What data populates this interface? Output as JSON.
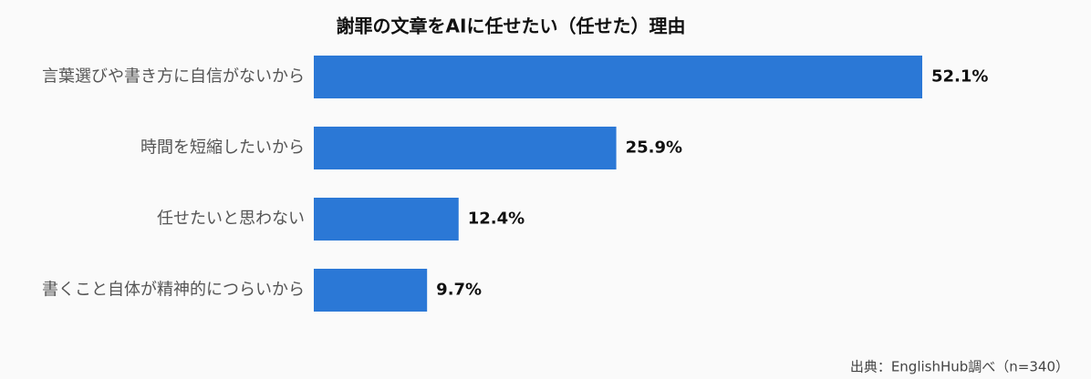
{
  "chart_data": {
    "type": "bar",
    "orientation": "horizontal",
    "title": "謝罪の文章をAIに任せたい（任せた）理由",
    "categories": [
      "言葉選びや書き方に自信がないから",
      "時間を短縮したいから",
      "任せたいと思わない",
      "書くこと自体が精神的につらいから"
    ],
    "values": [
      52.1,
      25.9,
      12.4,
      9.7
    ],
    "value_labels": [
      "52.1%",
      "25.9%",
      "12.4%",
      "9.7%"
    ],
    "color": "#2b78d6",
    "source": "出典：EnglishHub調べ（n=340）"
  }
}
